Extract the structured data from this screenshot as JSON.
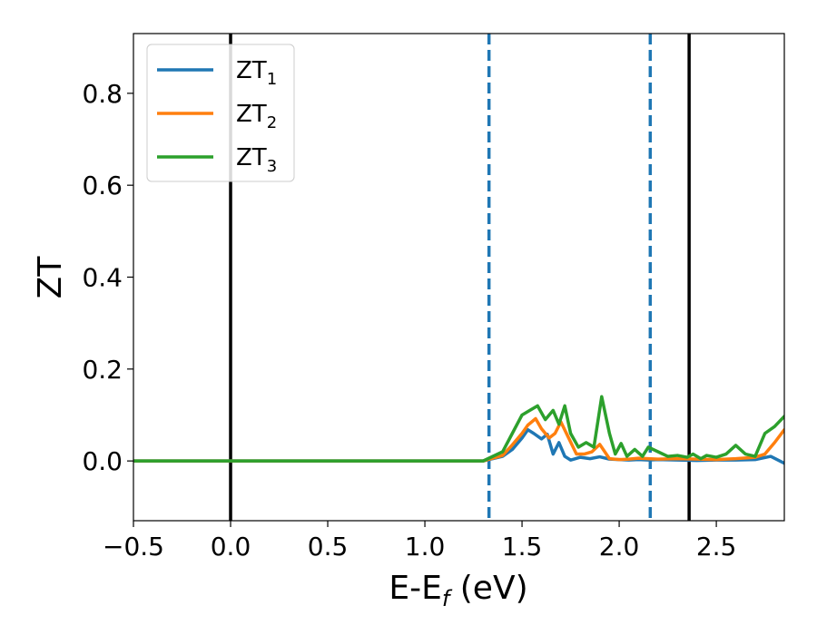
{
  "chart_data": {
    "type": "line",
    "xlabel": "E-E",
    "xlabel_sub": "f",
    "xlabel_unit": " (eV)",
    "ylabel": "ZT",
    "xlim": [
      -0.5,
      2.85
    ],
    "ylim": [
      -0.13,
      0.93
    ],
    "xticks": [
      -0.5,
      0.0,
      0.5,
      1.0,
      1.5,
      2.0,
      2.5
    ],
    "xtick_labels": [
      "−0.5",
      "0.0",
      "0.5",
      "1.0",
      "1.5",
      "2.0",
      "2.5"
    ],
    "yticks": [
      0.0,
      0.2,
      0.4,
      0.6,
      0.8
    ],
    "ytick_labels": [
      "0.0",
      "0.2",
      "0.4",
      "0.6",
      "0.8"
    ],
    "grid": false,
    "legend_position": "top-left",
    "vlines": [
      {
        "x": 0.0,
        "style": "solid",
        "color": "#000000"
      },
      {
        "x": 2.36,
        "style": "solid",
        "color": "#000000"
      },
      {
        "x": 1.33,
        "style": "dashed",
        "color": "#1f77b4"
      },
      {
        "x": 2.16,
        "style": "dashed",
        "color": "#1f77b4"
      }
    ],
    "series": [
      {
        "name": "ZT",
        "sub": "1",
        "color": "#1f77b4",
        "x": [
          -0.5,
          1.3,
          1.4,
          1.45,
          1.5,
          1.53,
          1.56,
          1.6,
          1.63,
          1.66,
          1.69,
          1.72,
          1.75,
          1.8,
          1.85,
          1.9,
          1.95,
          2.0,
          2.05,
          2.1,
          2.15,
          2.2,
          2.3,
          2.4,
          2.5,
          2.6,
          2.7,
          2.78,
          2.85
        ],
        "y": [
          0.0,
          0.0,
          0.01,
          0.025,
          0.05,
          0.068,
          0.06,
          0.048,
          0.058,
          0.015,
          0.04,
          0.01,
          0.002,
          0.008,
          0.005,
          0.009,
          0.004,
          0.003,
          0.002,
          0.003,
          0.002,
          0.003,
          0.002,
          0.001,
          0.002,
          0.002,
          0.003,
          0.01,
          -0.005
        ]
      },
      {
        "name": "ZT",
        "sub": "2",
        "color": "#ff7f0e",
        "x": [
          -0.5,
          1.3,
          1.4,
          1.45,
          1.5,
          1.53,
          1.57,
          1.6,
          1.64,
          1.67,
          1.7,
          1.74,
          1.78,
          1.82,
          1.86,
          1.9,
          1.95,
          2.0,
          2.05,
          2.1,
          2.2,
          2.3,
          2.4,
          2.5,
          2.6,
          2.7,
          2.75,
          2.8,
          2.85
        ],
        "y": [
          0.0,
          0.0,
          0.012,
          0.035,
          0.06,
          0.078,
          0.092,
          0.07,
          0.05,
          0.06,
          0.085,
          0.05,
          0.015,
          0.015,
          0.02,
          0.036,
          0.005,
          0.003,
          0.004,
          0.006,
          0.004,
          0.005,
          0.004,
          0.003,
          0.005,
          0.008,
          0.015,
          0.04,
          0.068
        ]
      },
      {
        "name": "ZT",
        "sub": "3",
        "color": "#2ca02c",
        "x": [
          -0.5,
          1.3,
          1.4,
          1.45,
          1.5,
          1.54,
          1.58,
          1.62,
          1.66,
          1.69,
          1.72,
          1.75,
          1.79,
          1.83,
          1.87,
          1.91,
          1.95,
          1.98,
          2.01,
          2.04,
          2.08,
          2.12,
          2.15,
          2.2,
          2.25,
          2.3,
          2.35,
          2.38,
          2.42,
          2.45,
          2.5,
          2.55,
          2.6,
          2.65,
          2.7,
          2.75,
          2.8,
          2.85
        ],
        "y": [
          0.0,
          0.0,
          0.02,
          0.06,
          0.1,
          0.11,
          0.12,
          0.09,
          0.11,
          0.08,
          0.12,
          0.06,
          0.03,
          0.04,
          0.03,
          0.14,
          0.06,
          0.015,
          0.038,
          0.01,
          0.025,
          0.01,
          0.03,
          0.02,
          0.01,
          0.012,
          0.008,
          0.015,
          0.005,
          0.012,
          0.008,
          0.015,
          0.034,
          0.015,
          0.01,
          0.06,
          0.075,
          0.097
        ]
      }
    ]
  }
}
